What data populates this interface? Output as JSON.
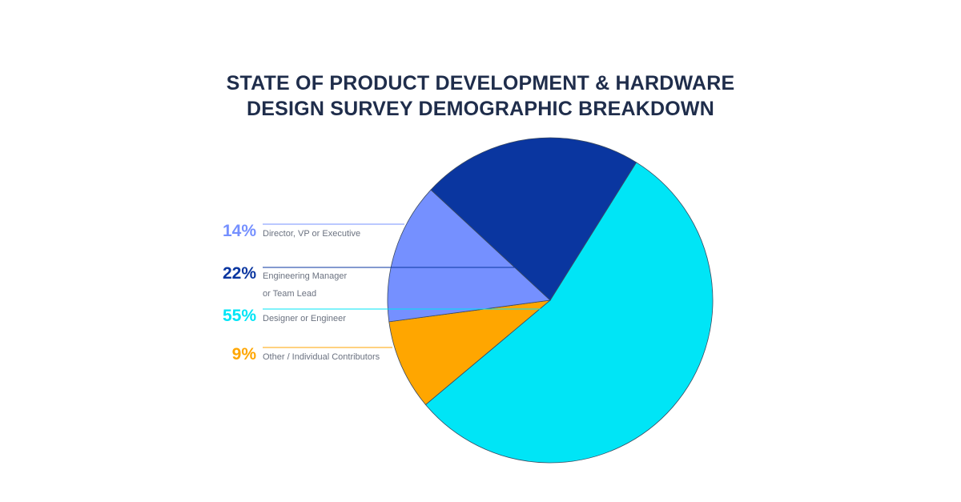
{
  "chart_data": {
    "type": "pie",
    "title": [
      "STATE OF PRODUCT DEVELOPMENT & HARDWARE",
      "DESIGN SURVEY DEMOGRAPHIC BREAKDOWN"
    ],
    "slices": [
      {
        "label": "Director, VP or Executive",
        "pct_label": "14%",
        "value": 14,
        "color": "#7590ff"
      },
      {
        "label": "Engineering Manager or Team Lead",
        "label_lines": [
          "Engineering Manager",
          "or Team Lead"
        ],
        "pct_label": "22%",
        "value": 22,
        "color": "#0a36a0"
      },
      {
        "label": "Designer or Engineer",
        "pct_label": "55%",
        "value": 55,
        "color": "#00e5f6"
      },
      {
        "label": "Other / Individual Contributors",
        "pct_label": "9%",
        "value": 9,
        "color": "#ffa600"
      }
    ],
    "legend": "left"
  }
}
